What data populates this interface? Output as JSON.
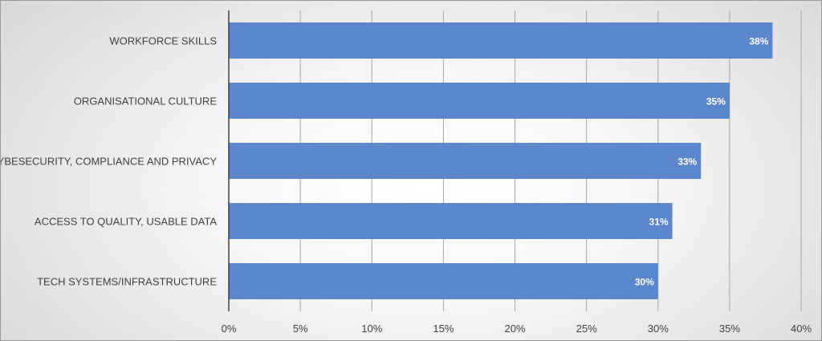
{
  "chart_data": {
    "type": "bar",
    "orientation": "horizontal",
    "categories": [
      "WORKFORCE SKILLS",
      "ORGANISATIONAL CULTURE",
      "CYBESECURITY, COMPLIANCE AND PRIVACY",
      "ACCESS TO QUALITY, USABLE DATA",
      "TECH SYSTEMS/INFRASTRUCTURE"
    ],
    "values": [
      38,
      35,
      33,
      31,
      30
    ],
    "data_labels": [
      "38%",
      "35%",
      "33%",
      "31%",
      "30%"
    ],
    "x_ticks": [
      0,
      5,
      10,
      15,
      20,
      25,
      30,
      35,
      40
    ],
    "x_tick_labels": [
      "0%",
      "5%",
      "10%",
      "15%",
      "20%",
      "25%",
      "30%",
      "35%",
      "40%"
    ],
    "xlim": [
      0,
      40
    ],
    "grid": true,
    "legend": "none",
    "title": "",
    "xlabel": "",
    "ylabel": "",
    "colors": {
      "bar": "#5b87cc",
      "gridline": "#a6a6a6",
      "axis": "#404040",
      "text": "#404040",
      "data_label": "#ffffff"
    }
  }
}
